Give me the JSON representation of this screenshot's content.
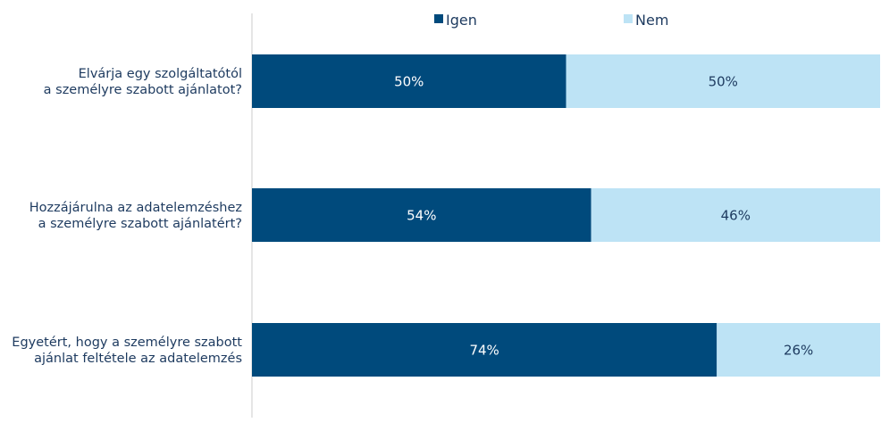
{
  "chart_data": {
    "type": "bar",
    "orientation": "horizontal",
    "stacked": "percent",
    "categories": [
      [
        "Elvárja egy szolgáltatótól",
        "a személyre szabott ajánlatot?"
      ],
      [
        "Hozzájárulna az adatelemzéshez",
        "a személyre szabott ajánlatért?"
      ],
      [
        "Egyetért, hogy a személyre szabott",
        "ajánlat feltétele az adatelemzés"
      ]
    ],
    "series": [
      {
        "name": "Igen",
        "values": [
          50,
          54,
          74
        ],
        "labels": [
          "50%",
          "54%",
          "74%"
        ],
        "color": "#004a7c",
        "text_color": "#ffffff"
      },
      {
        "name": "Nem",
        "values": [
          50,
          46,
          26
        ],
        "labels": [
          "50%",
          "46%",
          "26%"
        ],
        "color": "#bde3f5",
        "text_color": "#1d3a5f"
      }
    ],
    "xlim": [
      0,
      100
    ],
    "legend_position": "top",
    "grid": false
  }
}
